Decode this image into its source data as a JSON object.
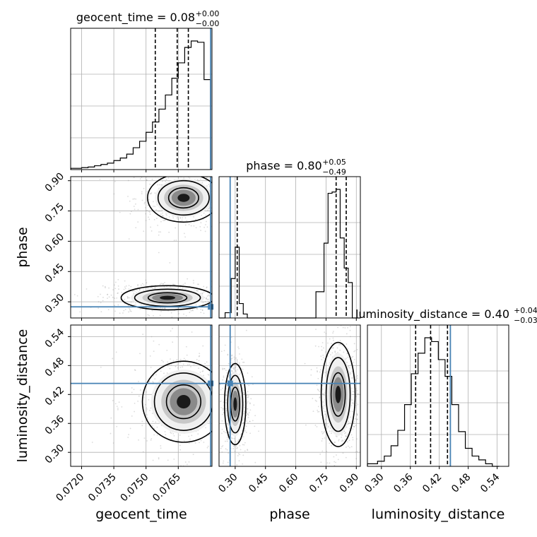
{
  "chart_data": {
    "type": "corner",
    "parameters": [
      "geocent_time",
      "phase",
      "luminosity_distance"
    ],
    "axis_labels": {
      "geocent_time": "geocent_time",
      "phase": "phase",
      "luminosity_distance": "luminosity_distance"
    },
    "ranges": {
      "geocent_time": [
        0.07149,
        0.07807
      ],
      "phase": [
        0.22,
        0.92
      ],
      "luminosity_distance": [
        0.271,
        0.564
      ]
    },
    "ticks": {
      "geocent_time": [
        "0.0720",
        "0.0735",
        "0.0750",
        "0.0765"
      ],
      "phase": [
        "0.30",
        "0.45",
        "0.60",
        "0.75",
        "0.90"
      ],
      "luminosity_distance": [
        "0.30",
        "0.36",
        "0.42",
        "0.48",
        "0.54"
      ]
    },
    "titles": [
      {
        "parameter": "geocent_time",
        "main": "geocent_time = 0.08",
        "plus": "+0.00",
        "minus": "−0.00"
      },
      {
        "parameter": "phase",
        "main": "phase = 0.80",
        "plus": "+0.05",
        "minus": "−0.49"
      },
      {
        "parameter": "luminosity_distance",
        "main": "luminosity_distance = 0.40",
        "plus": "+0.04",
        "minus": "−0.03"
      }
    ],
    "truths": {
      "geocent_time": 0.07801,
      "phase": 0.275,
      "luminosity_distance": 0.443
    },
    "quantiles": {
      "geocent_time": [
        0.07543,
        0.07645,
        0.07697
      ],
      "phase": [
        0.31,
        0.8,
        0.85
      ],
      "luminosity_distance": [
        0.371,
        0.402,
        0.437
      ]
    },
    "marginals": {
      "geocent_time": {
        "edges": [
          0.0715,
          0.072,
          0.0723,
          0.0726,
          0.0729,
          0.0732,
          0.0735,
          0.0738,
          0.0741,
          0.0744,
          0.0747,
          0.075,
          0.0753,
          0.0756,
          0.0759,
          0.0762,
          0.0765,
          0.0768,
          0.0771,
          0.0774,
          0.0777,
          0.078
        ],
        "counts": [
          0.01,
          0.015,
          0.02,
          0.03,
          0.04,
          0.05,
          0.07,
          0.09,
          0.12,
          0.17,
          0.22,
          0.29,
          0.37,
          0.47,
          0.58,
          0.71,
          0.83,
          0.95,
          1.0,
          0.99,
          0.7
        ]
      },
      "phase": {
        "edges": [
          0.22,
          0.25,
          0.28,
          0.3,
          0.32,
          0.34,
          0.36,
          0.38,
          0.4,
          0.42,
          0.7,
          0.74,
          0.76,
          0.78,
          0.8,
          0.82,
          0.84,
          0.86,
          0.88,
          0.92
        ],
        "counts": [
          0.0,
          0.04,
          0.3,
          0.54,
          0.11,
          0.03,
          0.0,
          0.0,
          0.0,
          0.0,
          0.2,
          0.57,
          0.95,
          0.96,
          0.98,
          0.61,
          0.38,
          0.27,
          0.0
        ]
      },
      "luminosity_distance": {
        "edges": [
          0.271,
          0.292,
          0.306,
          0.32,
          0.334,
          0.348,
          0.362,
          0.376,
          0.39,
          0.404,
          0.418,
          0.432,
          0.446,
          0.46,
          0.474,
          0.488,
          0.502,
          0.516,
          0.53,
          0.544
        ],
        "counts": [
          0.02,
          0.04,
          0.08,
          0.16,
          0.28,
          0.48,
          0.72,
          0.88,
          1.0,
          0.97,
          0.83,
          0.7,
          0.48,
          0.27,
          0.14,
          0.08,
          0.05,
          0.02,
          0.0
        ]
      }
    },
    "joint": [
      {
        "x": "geocent_time",
        "y": "phase",
        "modes": [
          {
            "cx": 0.07675,
            "cy": 0.815,
            "sx": 0.0007,
            "sy": 0.05
          },
          {
            "cx": 0.076,
            "cy": 0.32,
            "sx": 0.0009,
            "sy": 0.025
          }
        ]
      },
      {
        "x": "geocent_time",
        "y": "luminosity_distance",
        "modes": [
          {
            "cx": 0.07675,
            "cy": 0.405,
            "sx": 0.0008,
            "sy": 0.035
          }
        ]
      },
      {
        "x": "phase",
        "y": "luminosity_distance",
        "modes": [
          {
            "cx": 0.3,
            "cy": 0.4,
            "sx": 0.022,
            "sy": 0.035
          },
          {
            "cx": 0.81,
            "cy": 0.42,
            "sx": 0.035,
            "sy": 0.045
          }
        ]
      }
    ],
    "grid": true,
    "colors": {
      "truth": "#4682b4",
      "hist": "#000000",
      "points": "#999999"
    }
  }
}
